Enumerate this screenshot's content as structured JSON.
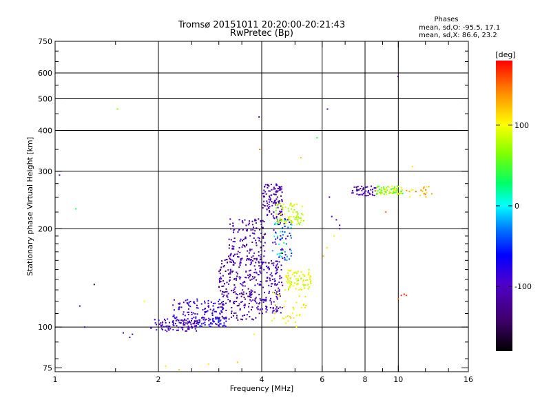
{
  "chart_data": {
    "type": "scatter",
    "title": "Tromsø 20151011 20:20:00-20:21:43",
    "subtitle": "RwPretec (Bp)",
    "stats": {
      "heading": "Phases",
      "line_o": "mean, sd,O: -95.5, 17.1",
      "line_x": "mean, sd,X:  86.6, 23.2"
    },
    "xlabel": "Frequency [MHz]",
    "ylabel": "Stationary phase Virtual Height [km]",
    "x_scale": "log",
    "y_scale": "log",
    "xlim": [
      1,
      16
    ],
    "ylim": [
      73,
      750
    ],
    "x_ticks": [
      1,
      2,
      4,
      6,
      8,
      10,
      16
    ],
    "x_tick_labels": [
      "1",
      "2",
      "4",
      "6",
      "8",
      "10",
      "16"
    ],
    "x_gridlines": [
      2,
      4,
      6,
      8,
      10
    ],
    "y_ticks": [
      75,
      100,
      200,
      300,
      400,
      500,
      600,
      750
    ],
    "y_tick_labels": [
      "75",
      "100",
      "200",
      "300",
      "400",
      "500",
      "600",
      "750"
    ],
    "y_gridlines": [
      100,
      200,
      300,
      400,
      500,
      600
    ],
    "colorbar": {
      "label": "[deg]",
      "range": [
        -180,
        180
      ],
      "tick_values": [
        100,
        0,
        -100
      ],
      "tick_labels": [
        "100",
        "0",
        "-100"
      ]
    },
    "points": [
      {
        "f": 1.03,
        "h": 292,
        "phase": -120
      },
      {
        "f": 1.15,
        "h": 230,
        "phase": 30
      },
      {
        "f": 1.18,
        "h": 116,
        "phase": -70
      },
      {
        "f": 1.22,
        "h": 100,
        "phase": -110
      },
      {
        "f": 1.3,
        "h": 135,
        "phase": -160
      },
      {
        "f": 1.52,
        "h": 465,
        "phase": 70
      },
      {
        "f": 1.58,
        "h": 96,
        "phase": -110
      },
      {
        "f": 1.65,
        "h": 93,
        "phase": -120
      },
      {
        "f": 1.68,
        "h": 95,
        "phase": -115
      },
      {
        "f": 1.82,
        "h": 120,
        "phase": 100
      },
      {
        "f": 1.96,
        "h": 103,
        "phase": -100
      },
      {
        "f": 2.1,
        "h": 76,
        "phase": 110
      },
      {
        "f": 2.3,
        "h": 74,
        "phase": 120
      },
      {
        "f": 2.8,
        "h": 77,
        "phase": 110
      },
      {
        "f": 3.4,
        "h": 78,
        "phase": 120
      },
      {
        "f": 3.8,
        "h": 95,
        "phase": 110
      },
      {
        "f": 3.93,
        "h": 440,
        "phase": -120
      },
      {
        "f": 3.95,
        "h": 350,
        "phase": 150
      },
      {
        "f": 5.2,
        "h": 330,
        "phase": 120
      },
      {
        "f": 5.8,
        "h": 380,
        "phase": 40
      },
      {
        "f": 6.22,
        "h": 465,
        "phase": -120
      },
      {
        "f": 9.98,
        "h": 585,
        "phase": -120
      },
      {
        "f": 6.3,
        "h": 250,
        "phase": -120
      },
      {
        "f": 6.4,
        "h": 218,
        "phase": -115
      },
      {
        "f": 6.6,
        "h": 213,
        "phase": -120
      },
      {
        "f": 6.75,
        "h": 205,
        "phase": -125
      },
      {
        "f": 6.75,
        "h": 200,
        "phase": -125
      },
      {
        "f": 6.5,
        "h": 190,
        "phase": 100
      },
      {
        "f": 6.2,
        "h": 175,
        "phase": 110
      },
      {
        "f": 6.05,
        "h": 165,
        "phase": 120
      },
      {
        "f": 9.2,
        "h": 225,
        "phase": 150
      },
      {
        "f": 10.2,
        "h": 125,
        "phase": 170
      },
      {
        "f": 10.4,
        "h": 126,
        "phase": 170
      },
      {
        "f": 10.55,
        "h": 125,
        "phase": 170
      },
      {
        "f": 10.0,
        "h": 122,
        "phase": 150
      },
      {
        "f": 11.0,
        "h": 310,
        "phase": 110
      },
      {
        "f": 12.0,
        "h": 255,
        "phase": 150
      }
    ],
    "clusters": [
      {
        "f": [
          1.9,
          2.6
        ],
        "h": [
          97,
          106
        ],
        "phase": [
          -115,
          -90
        ],
        "n": 80
      },
      {
        "f": [
          2.2,
          3.1
        ],
        "h": [
          102,
          122
        ],
        "phase": [
          -120,
          -60
        ],
        "n": 130
      },
      {
        "f": [
          2.5,
          3.2
        ],
        "h": [
          100,
          108
        ],
        "phase": [
          -110,
          -40
        ],
        "n": 60
      },
      {
        "f": [
          3.0,
          3.9
        ],
        "h": [
          105,
          165
        ],
        "phase": [
          -140,
          -90
        ],
        "n": 240
      },
      {
        "f": [
          3.2,
          4.1
        ],
        "h": [
          160,
          215
        ],
        "phase": [
          -130,
          -90
        ],
        "n": 130
      },
      {
        "f": [
          3.9,
          4.6
        ],
        "h": [
          110,
          160
        ],
        "phase": [
          -125,
          -80
        ],
        "n": 150
      },
      {
        "f": [
          4.0,
          4.6
        ],
        "h": [
          215,
          275
        ],
        "phase": [
          -125,
          -100
        ],
        "n": 110
      },
      {
        "f": [
          4.3,
          4.9
        ],
        "h": [
          160,
          215
        ],
        "phase": [
          -120,
          30
        ],
        "n": 80
      },
      {
        "f": [
          4.4,
          5.3
        ],
        "h": [
          205,
          240
        ],
        "phase": [
          60,
          110
        ],
        "n": 80
      },
      {
        "f": [
          4.7,
          5.6
        ],
        "h": [
          130,
          150
        ],
        "phase": [
          70,
          115
        ],
        "n": 80
      },
      {
        "f": [
          4.2,
          5.4
        ],
        "h": [
          100,
          130
        ],
        "phase": [
          90,
          120
        ],
        "n": 40
      },
      {
        "f": [
          7.3,
          8.6
        ],
        "h": [
          252,
          270
        ],
        "phase": [
          -125,
          -95
        ],
        "n": 50
      },
      {
        "f": [
          8.6,
          10.3
        ],
        "h": [
          255,
          270
        ],
        "phase": [
          40,
          110
        ],
        "n": 80
      },
      {
        "f": [
          10.3,
          12.6
        ],
        "h": [
          250,
          270
        ],
        "phase": [
          90,
          150
        ],
        "n": 20
      }
    ]
  }
}
